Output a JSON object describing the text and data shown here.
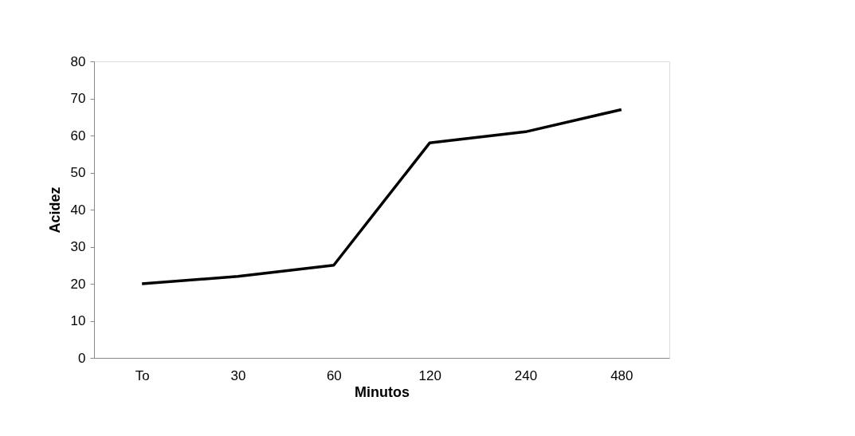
{
  "chart_data": {
    "type": "line",
    "xlabel": "Minutos",
    "ylabel": "Acidez",
    "categories": [
      "To",
      "30",
      "60",
      "120",
      "240",
      "480"
    ],
    "series": [
      {
        "color": "#000000",
        "values": [
          20,
          22,
          25,
          58,
          61,
          67
        ]
      }
    ],
    "ylim": [
      0,
      80
    ],
    "yticks": [
      0,
      10,
      20,
      30,
      40,
      50,
      60,
      70,
      80
    ],
    "grid": false,
    "legend": false,
    "marker": "none",
    "line_style": "solid"
  }
}
